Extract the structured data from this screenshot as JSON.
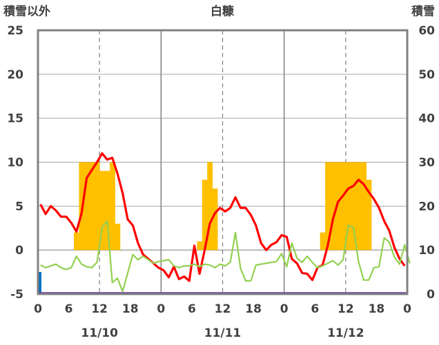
{
  "chart_data": {
    "type": "bar+line",
    "title": "白糠",
    "left_axis_title": "積雪以外",
    "right_axis_title": "積雪",
    "y_left": {
      "min": -5,
      "max": 25,
      "ticks": [
        -5,
        0,
        5,
        10,
        15,
        20,
        25
      ]
    },
    "y_right": {
      "min": 0,
      "max": 60,
      "ticks": [
        0,
        10,
        20,
        30,
        40,
        50,
        60
      ]
    },
    "x": {
      "min": 0,
      "max": 72,
      "hour_ticks": [
        0,
        6,
        12,
        18,
        0,
        6,
        12,
        18,
        0,
        6,
        12,
        18,
        0
      ],
      "hour_tick_positions": [
        0,
        6,
        12,
        18,
        24,
        30,
        36,
        42,
        48,
        54,
        60,
        66,
        72
      ],
      "day_labels": [
        "11/10",
        "11/11",
        "11/12"
      ],
      "day_label_positions": [
        12,
        36,
        60
      ]
    },
    "series": [
      {
        "kind": "bar",
        "color": "#ffc000",
        "axis": "left",
        "x_start": 0,
        "values": [
          0,
          0,
          0,
          0,
          0,
          0,
          0,
          2,
          10,
          10,
          10,
          10,
          9,
          9,
          10,
          3,
          0,
          0,
          0,
          0,
          0,
          0,
          0,
          0,
          0,
          0,
          0,
          0,
          0,
          0,
          0,
          1,
          8,
          10,
          7,
          0,
          0,
          0,
          0,
          0,
          0,
          0,
          0,
          0,
          0,
          0,
          0,
          0,
          0,
          0,
          0,
          0,
          0,
          0,
          0,
          2,
          10,
          10,
          10,
          10,
          10,
          10,
          10,
          10,
          8,
          0,
          0,
          0,
          0,
          0,
          0,
          0
        ]
      },
      {
        "kind": "line",
        "color": "#ff0000",
        "axis": "left",
        "x_start": 0,
        "values": [
          5.2,
          4.1,
          5,
          4.5,
          3.8,
          3.8,
          3.1,
          2.1,
          4.2,
          8.2,
          9.1,
          10,
          11,
          10.3,
          10.5,
          8.7,
          6.5,
          3.5,
          2.8,
          0.8,
          -0.5,
          -1,
          -1.5,
          -2,
          -2.3,
          -3.1,
          -1.9,
          -3.3,
          -3,
          -3.5,
          0.5,
          -2.7,
          0,
          3,
          4.2,
          4.8,
          4.4,
          4.8,
          6,
          4.8,
          4.8,
          4,
          2.8,
          0.8,
          0,
          0.6,
          0.9,
          1.7,
          1.5,
          -1,
          -1.5,
          -2.6,
          -2.7,
          -3.4,
          -2,
          -1.7,
          0.5,
          3.5,
          5.5,
          6.2,
          7,
          7.3,
          8,
          7.5,
          6.6,
          5.8,
          4.8,
          3.3,
          2.2,
          0.3,
          -1,
          -1.8
        ]
      },
      {
        "kind": "line",
        "color": "#92d050",
        "axis": "left",
        "x_start": 0,
        "values": [
          -1.7,
          -2,
          -1.8,
          -1.6,
          -2,
          -2.2,
          -2,
          -0.7,
          -1.6,
          -1.9,
          -2,
          -1.4,
          2.6,
          3.3,
          -3.7,
          -3.2,
          -4.7,
          -2.6,
          -0.5,
          -1.1,
          -0.7,
          -1.1,
          -1.5,
          -1.3,
          -1.2,
          -1.1,
          -1.8,
          -2,
          -1.8,
          -1.8,
          -1.6,
          -1.9,
          -1.6,
          -1.7,
          -2,
          -1.6,
          -1.8,
          -1.4,
          2,
          -2.1,
          -3.5,
          -3.5,
          -1.7,
          -1.6,
          -1.5,
          -1.4,
          -1.3,
          -0.4,
          -1.9,
          0.8,
          -0.9,
          -1.4,
          -0.7,
          -1.4,
          -2,
          -1.8,
          -1.5,
          -1.2,
          -1.7,
          -1.1,
          2.8,
          2.6,
          -1.3,
          -3.4,
          -3.4,
          -2,
          -1.9,
          1.4,
          0.9,
          -0.8,
          -1.6,
          0.6,
          -1.5
        ]
      },
      {
        "kind": "bar",
        "color": "#0070c0",
        "axis": "right",
        "x_start": 0,
        "values": [
          5
        ]
      },
      {
        "kind": "line",
        "color": "#7030a0",
        "axis": "left",
        "constant": -4.9
      }
    ]
  }
}
